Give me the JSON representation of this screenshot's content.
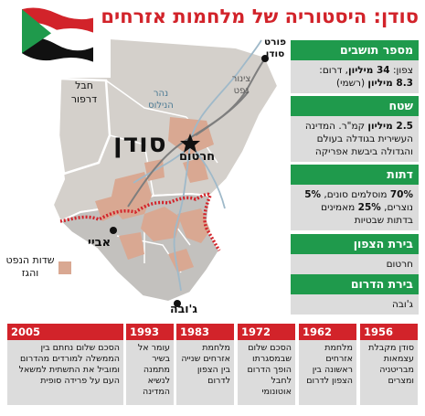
{
  "title": "סודן: היסטוריה של מלחמות אזרחים",
  "map": {
    "country_label": "סודן",
    "darfur": "חבל דרפור",
    "nile": "נהר הנילוס",
    "pipeline": "צינור נפט",
    "port": "פורט סודן",
    "khartoum": "חרטום",
    "abyei": "אביי",
    "juba": "ג'ובה",
    "legend": "שדות הנפט והגז",
    "colors": {
      "land": "#d4d0cb",
      "south": "#c3c1be",
      "oil": "#d9a892",
      "border": "#d2232a",
      "pipeline": "#7e7e7e",
      "river": "#9fb9c9"
    }
  },
  "facts": [
    {
      "header": "מספר תושבים",
      "lines": [
        [
          {
            "t": "צפון: ",
            "b": false
          },
          {
            "t": "34 מיליון",
            "b": true
          },
          {
            "t": ", דרום:",
            "b": false
          }
        ],
        [
          {
            "t": "8.3 מיליון",
            "b": true
          },
          {
            "t": " (רשמי)",
            "b": false
          }
        ]
      ]
    },
    {
      "header": "שטח",
      "lines": [
        [
          {
            "t": "2.5 מיליון",
            "b": true
          },
          {
            "t": " קמ\"ר. המדינה",
            "b": false
          }
        ],
        [
          {
            "t": "העשירית בגודלה בעולם",
            "b": false
          }
        ],
        [
          {
            "t": "והגדולה ביבשת אפריקה",
            "b": false
          }
        ]
      ]
    },
    {
      "header": "דתות",
      "lines": [
        [
          {
            "t": "70%",
            "b": true
          },
          {
            "t": " מוסלמים סונים, ",
            "b": false
          },
          {
            "t": "5%",
            "b": true
          }
        ],
        [
          {
            "t": "נוצרים, ",
            "b": false
          },
          {
            "t": "25%",
            "b": true
          },
          {
            "t": " מאמינים",
            "b": false
          }
        ],
        [
          {
            "t": "בדתות שבטיות",
            "b": false
          }
        ]
      ]
    },
    {
      "header": "בירת הצפון",
      "lines": [
        [
          {
            "t": "חרטום",
            "b": false
          }
        ]
      ]
    },
    {
      "header": "בירת הדרום",
      "lines": [
        [
          {
            "t": "ג'ובה",
            "b": false
          }
        ]
      ]
    }
  ],
  "timeline": [
    {
      "year": "1956",
      "text": "סודן מקבלת עצמאות מבריטניה ומצרים"
    },
    {
      "year": "1962",
      "text": "מלחמת אזרחים ראשונה בין הצפון לדרום"
    },
    {
      "year": "1972",
      "text": "הסכם שלום שבמסגרתו הופך הדרום לחבל אוטונומי"
    },
    {
      "year": "1983",
      "text": "מלחמת אזרחים שנייה בין הצפון לדרום"
    },
    {
      "year": "1993",
      "text": "עומר אל בשיר מתמנה לנשיא המדינה"
    },
    {
      "year": "2005",
      "text": "הסכם שלום נחתם בין הממשלה למורדים מהדרום ומוביל את התשתית למשאל העם על פרידה סופית"
    }
  ]
}
